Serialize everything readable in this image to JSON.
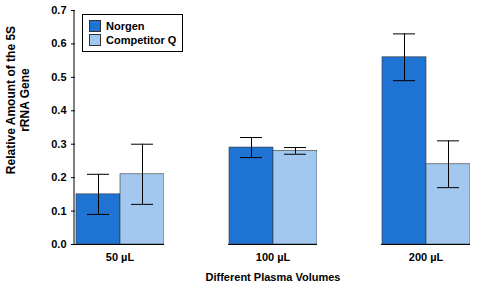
{
  "chart_data": {
    "type": "bar",
    "categories": [
      "50 µL",
      "100 µL",
      "200 µL"
    ],
    "series": [
      {
        "name": "Norgen",
        "color": "#1f73d2",
        "values": [
          0.15,
          0.29,
          0.56
        ],
        "errors": [
          0.06,
          0.03,
          0.07
        ]
      },
      {
        "name": "Competitor Q",
        "color": "#a3c8ef",
        "values": [
          0.21,
          0.28,
          0.24
        ],
        "errors": [
          0.09,
          0.01,
          0.07
        ]
      }
    ],
    "x_label": "Different Plasma Volumes",
    "y_label": "Relative Amount of the 5S rRNA Gene",
    "ylim": [
      0,
      0.7
    ],
    "yticks": [
      {
        "value": 0,
        "label": "0.0"
      },
      0.1,
      0.2,
      0.3,
      0.4,
      0.5,
      0.6,
      0.7
    ],
    "grid": false,
    "legend": "top-left"
  }
}
